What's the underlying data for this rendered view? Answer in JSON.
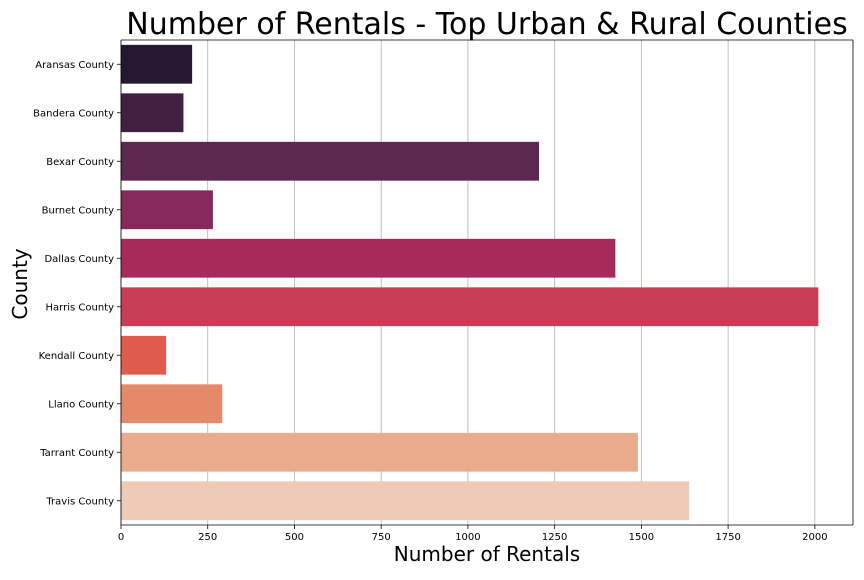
{
  "chart_data": {
    "type": "bar",
    "orientation": "horizontal",
    "title": "Number of Rentals - Top Urban & Rural Counties",
    "xlabel": "Number of Rentals",
    "ylabel": "County",
    "xlim": [
      0,
      2110
    ],
    "grid": "x-axis vertical lines",
    "xticks": [
      0,
      250,
      500,
      750,
      1000,
      1250,
      1500,
      1750,
      2000
    ],
    "xtick_labels": [
      "0",
      "250",
      "500",
      "750",
      "1000",
      "1250",
      "1500",
      "1750",
      "2000"
    ],
    "categories": [
      "Aransas County",
      "Bandera County",
      "Bexar County",
      "Burnet County",
      "Dallas County",
      "Harris County",
      "Kendall County",
      "Llano County",
      "Tarrant County",
      "Travis County"
    ],
    "values": [
      205,
      180,
      1205,
      265,
      1425,
      2010,
      130,
      292,
      1490,
      1638
    ],
    "colors": [
      "#251631",
      "#422042",
      "#5e2750",
      "#87295a",
      "#a72a5c",
      "#c83d55",
      "#de5d4d",
      "#e48969",
      "#eaab8c",
      "#efcab5"
    ]
  }
}
